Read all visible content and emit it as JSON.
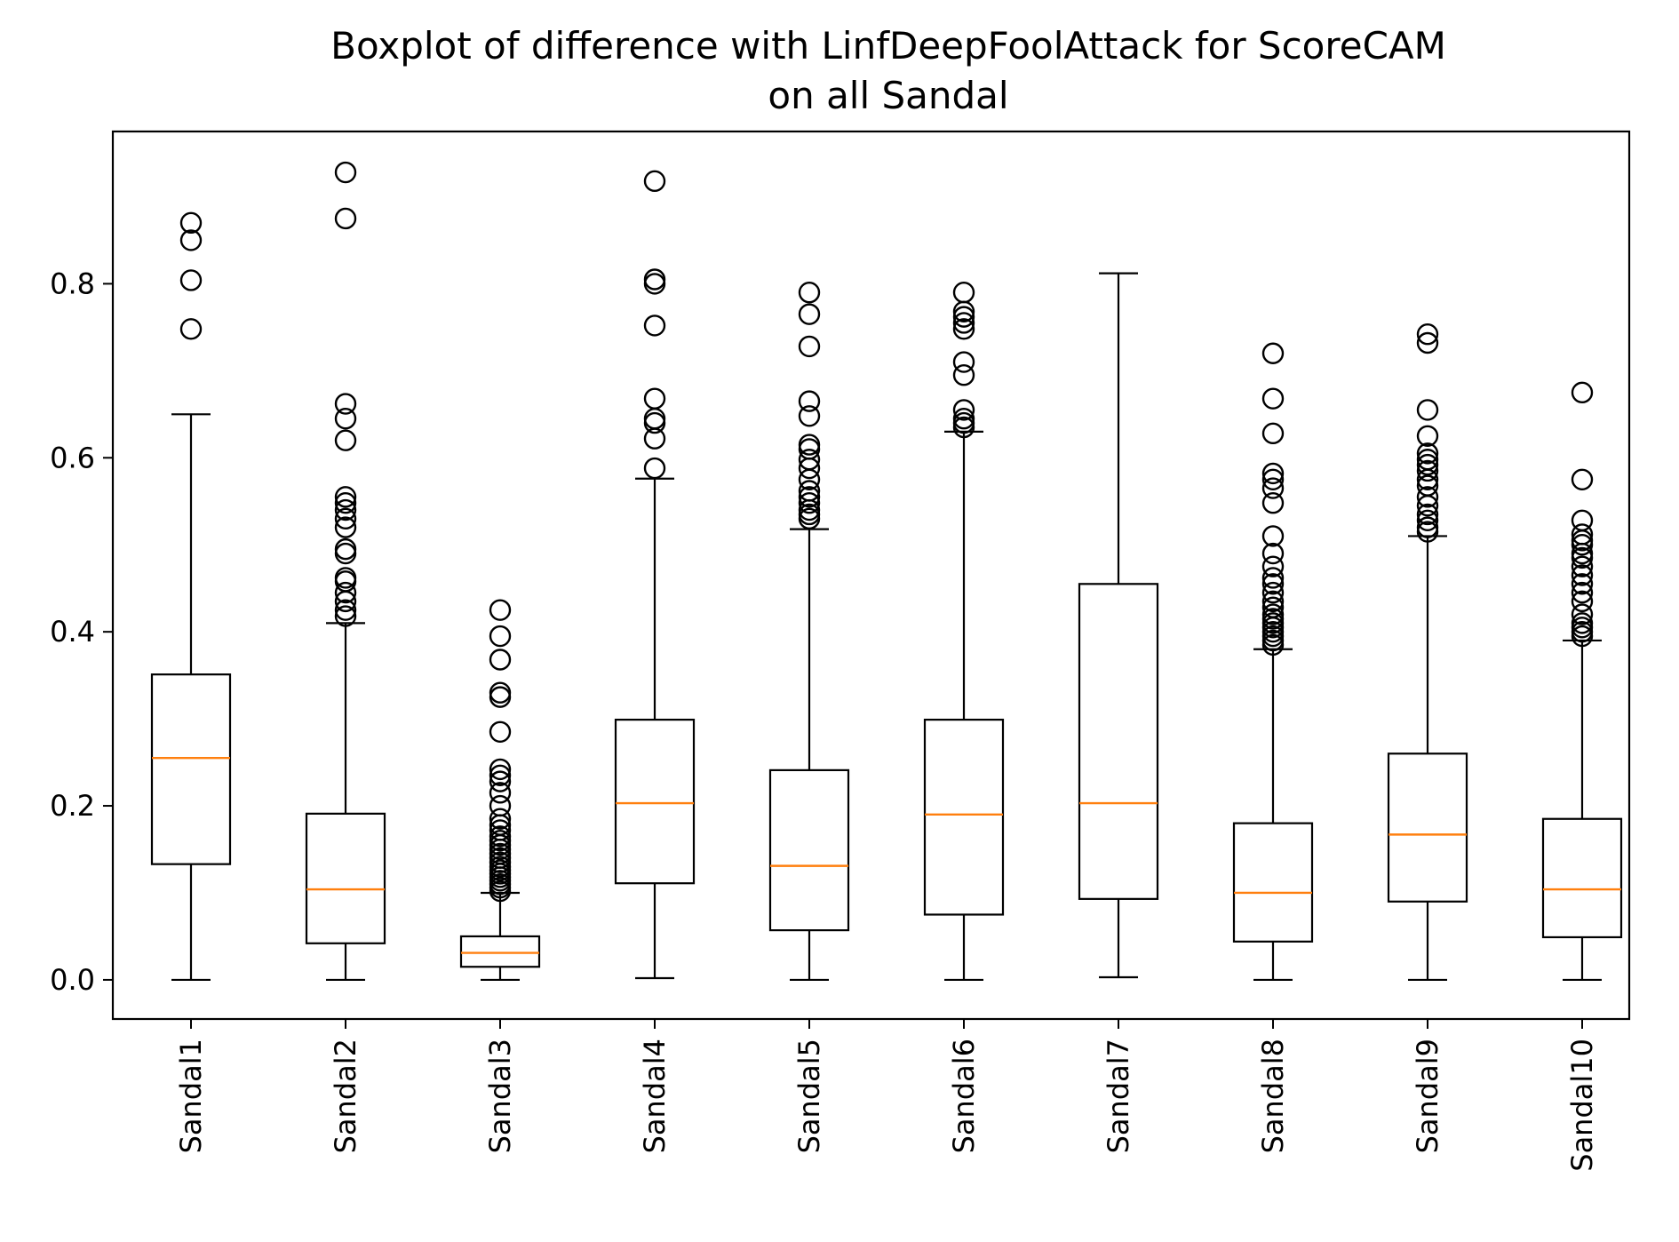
{
  "chart_data": {
    "type": "boxplot",
    "title": "Boxplot of difference with LinfDeepFoolAttack for ScoreCAM",
    "subtitle": "on all Sandal",
    "xlabel": "",
    "ylabel": "",
    "ylim": [
      -0.045,
      0.975
    ],
    "yticks": [
      0.0,
      0.2,
      0.4,
      0.6,
      0.8
    ],
    "ytick_labels": [
      "0.0",
      "0.2",
      "0.4",
      "0.6",
      "0.8"
    ],
    "grid": false,
    "colors": {
      "median": "#ff7f0e",
      "box": "#000000",
      "outlier": "#000000"
    },
    "categories": [
      "Sandal1",
      "Sandal2",
      "Sandal3",
      "Sandal4",
      "Sandal5",
      "Sandal6",
      "Sandal7",
      "Sandal8",
      "Sandal9",
      "Sandal10"
    ],
    "boxes": [
      {
        "name": "Sandal1",
        "whisker_low": 0.0,
        "q1": 0.133,
        "median": 0.255,
        "q3": 0.351,
        "whisker_high": 0.65,
        "outliers": [
          0.748,
          0.804,
          0.85,
          0.87
        ]
      },
      {
        "name": "Sandal2",
        "whisker_low": 0.0,
        "q1": 0.042,
        "median": 0.104,
        "q3": 0.191,
        "whisker_high": 0.41,
        "outliers": [
          0.418,
          0.425,
          0.435,
          0.445,
          0.458,
          0.462,
          0.49,
          0.495,
          0.52,
          0.53,
          0.54,
          0.548,
          0.555,
          0.62,
          0.645,
          0.662,
          0.875,
          0.928
        ]
      },
      {
        "name": "Sandal3",
        "whisker_low": 0.0,
        "q1": 0.015,
        "median": 0.031,
        "q3": 0.05,
        "whisker_high": 0.1,
        "outliers": [
          0.102,
          0.106,
          0.11,
          0.114,
          0.118,
          0.122,
          0.126,
          0.13,
          0.135,
          0.14,
          0.145,
          0.15,
          0.155,
          0.16,
          0.165,
          0.172,
          0.178,
          0.185,
          0.2,
          0.215,
          0.228,
          0.235,
          0.242,
          0.285,
          0.325,
          0.33,
          0.368,
          0.395,
          0.425
        ]
      },
      {
        "name": "Sandal4",
        "whisker_low": 0.002,
        "q1": 0.111,
        "median": 0.203,
        "q3": 0.299,
        "whisker_high": 0.576,
        "outliers": [
          0.588,
          0.622,
          0.64,
          0.645,
          0.668,
          0.752,
          0.8,
          0.805,
          0.918
        ]
      },
      {
        "name": "Sandal5",
        "whisker_low": 0.0,
        "q1": 0.057,
        "median": 0.131,
        "q3": 0.241,
        "whisker_high": 0.518,
        "outliers": [
          0.53,
          0.535,
          0.54,
          0.548,
          0.555,
          0.562,
          0.575,
          0.588,
          0.598,
          0.61,
          0.615,
          0.648,
          0.665,
          0.728,
          0.765,
          0.79
        ]
      },
      {
        "name": "Sandal6",
        "whisker_low": 0.0,
        "q1": 0.075,
        "median": 0.19,
        "q3": 0.299,
        "whisker_high": 0.63,
        "outliers": [
          0.635,
          0.64,
          0.645,
          0.655,
          0.695,
          0.71,
          0.748,
          0.755,
          0.762,
          0.768,
          0.79
        ]
      },
      {
        "name": "Sandal7",
        "whisker_low": 0.003,
        "q1": 0.093,
        "median": 0.203,
        "q3": 0.455,
        "whisker_high": 0.812,
        "outliers": []
      },
      {
        "name": "Sandal8",
        "whisker_low": 0.0,
        "q1": 0.044,
        "median": 0.1,
        "q3": 0.18,
        "whisker_high": 0.38,
        "outliers": [
          0.385,
          0.39,
          0.395,
          0.4,
          0.405,
          0.41,
          0.415,
          0.42,
          0.428,
          0.435,
          0.445,
          0.455,
          0.462,
          0.475,
          0.49,
          0.51,
          0.548,
          0.565,
          0.575,
          0.582,
          0.628,
          0.668,
          0.72
        ]
      },
      {
        "name": "Sandal9",
        "whisker_low": 0.0,
        "q1": 0.09,
        "median": 0.167,
        "q3": 0.26,
        "whisker_high": 0.51,
        "outliers": [
          0.515,
          0.52,
          0.528,
          0.535,
          0.545,
          0.555,
          0.568,
          0.575,
          0.585,
          0.592,
          0.598,
          0.605,
          0.625,
          0.655,
          0.732,
          0.742
        ]
      },
      {
        "name": "Sandal10",
        "whisker_low": 0.0,
        "q1": 0.049,
        "median": 0.104,
        "q3": 0.185,
        "whisker_high": 0.39,
        "outliers": [
          0.395,
          0.4,
          0.405,
          0.41,
          0.42,
          0.435,
          0.445,
          0.455,
          0.465,
          0.475,
          0.485,
          0.49,
          0.5,
          0.505,
          0.512,
          0.528,
          0.575,
          0.675
        ]
      }
    ]
  }
}
